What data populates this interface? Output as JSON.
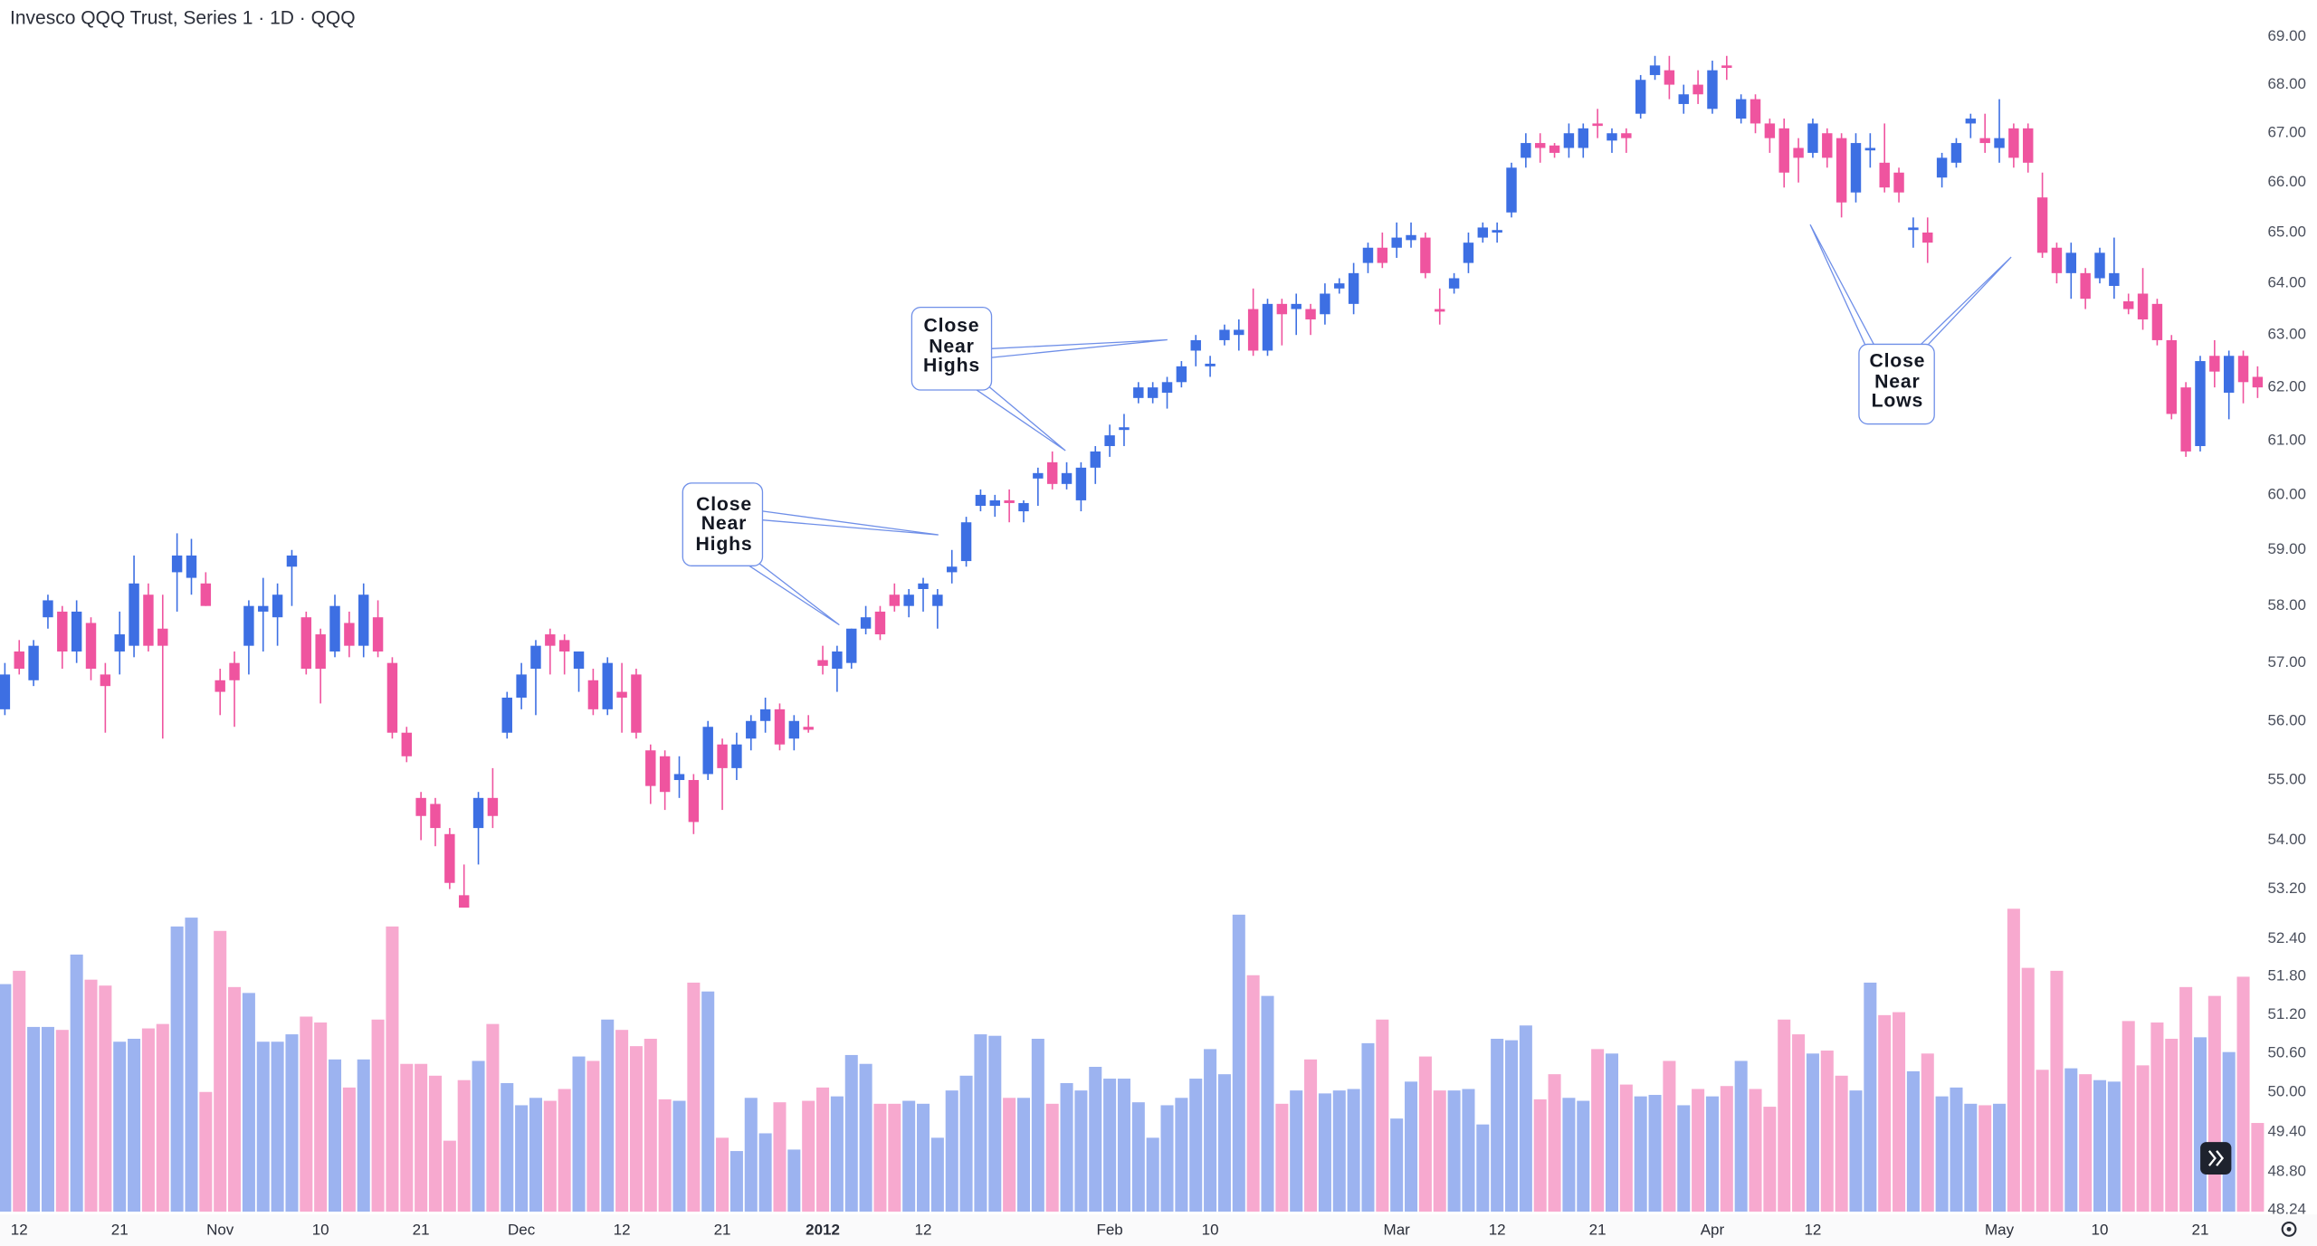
{
  "chart_data": {
    "type": "candlestick",
    "title": "Invesco QQQ Trust, Series 1 · 1D · QQQ",
    "y_scale": "log",
    "grid": false,
    "up_color": "#3d6fe3",
    "down_color": "#ef549f",
    "volume_up_color": "#9cb3f0",
    "volume_down_color": "#f7a9cf",
    "ylim": [
      48.24,
      69.78
    ],
    "yticks": [
      {
        "value": 69,
        "label": "69.00"
      },
      {
        "value": 68,
        "label": "68.00"
      },
      {
        "value": 67,
        "label": "67.00"
      },
      {
        "value": 66,
        "label": "66.00"
      },
      {
        "value": 65,
        "label": "65.00"
      },
      {
        "value": 64,
        "label": "64.00"
      },
      {
        "value": 63,
        "label": "63.00"
      },
      {
        "value": 62,
        "label": "62.00"
      },
      {
        "value": 61,
        "label": "61.00"
      },
      {
        "value": 60,
        "label": "60.00"
      },
      {
        "value": 59,
        "label": "59.00"
      },
      {
        "value": 58,
        "label": "58.00"
      },
      {
        "value": 57,
        "label": "57.00"
      },
      {
        "value": 56,
        "label": "56.00"
      },
      {
        "value": 55,
        "label": "55.00"
      },
      {
        "value": 54,
        "label": "54.00"
      },
      {
        "value": 53.2,
        "label": "53.20"
      },
      {
        "value": 52.4,
        "label": "52.40"
      },
      {
        "value": 51.8,
        "label": "51.80"
      },
      {
        "value": 51.2,
        "label": "51.20"
      },
      {
        "value": 50.6,
        "label": "50.60"
      },
      {
        "value": 50,
        "label": "50.00"
      },
      {
        "value": 49.4,
        "label": "49.40"
      },
      {
        "value": 48.8,
        "label": "48.80"
      },
      {
        "value": 48.24,
        "label": "48.24"
      }
    ],
    "volume_ylim": [
      0,
      220
    ],
    "categories": [
      null,
      "12",
      null,
      null,
      null,
      null,
      null,
      null,
      "21",
      null,
      null,
      null,
      null,
      null,
      null,
      "Nov",
      null,
      null,
      null,
      null,
      null,
      null,
      "10",
      null,
      null,
      null,
      null,
      null,
      null,
      "21",
      null,
      null,
      null,
      null,
      null,
      null,
      "Dec",
      null,
      null,
      null,
      null,
      null,
      null,
      "12",
      null,
      null,
      null,
      null,
      null,
      null,
      "21",
      null,
      null,
      null,
      null,
      null,
      null,
      "2012",
      null,
      null,
      null,
      null,
      null,
      null,
      "12",
      null,
      null,
      null,
      null,
      null,
      null,
      null,
      null,
      null,
      null,
      null,
      null,
      "Feb",
      null,
      null,
      null,
      null,
      null,
      null,
      "10",
      null,
      null,
      null,
      null,
      null,
      null,
      null,
      null,
      null,
      null,
      null,
      null,
      "Mar",
      null,
      null,
      null,
      null,
      null,
      null,
      "12",
      null,
      null,
      null,
      null,
      null,
      null,
      "21",
      null,
      null,
      null,
      null,
      null,
      null,
      null,
      "Apr",
      null,
      null,
      null,
      null,
      null,
      null,
      "12",
      null,
      null,
      null,
      null,
      null,
      null,
      null,
      null,
      null,
      null,
      null,
      null,
      "May",
      null,
      null,
      null,
      null,
      null,
      null,
      "10",
      null,
      null,
      null,
      null,
      null,
      null,
      "21",
      null,
      null,
      null,
      null
    ],
    "open": [
      56.2,
      57.2,
      56.7,
      57.8,
      57.9,
      57.2,
      57.7,
      56.8,
      57.2,
      57.3,
      58.2,
      57.6,
      58.6,
      58.5,
      58.4,
      56.7,
      57.0,
      57.3,
      57.9,
      57.8,
      58.7,
      57.8,
      57.5,
      57.2,
      57.7,
      57.3,
      57.8,
      57.0,
      55.8,
      54.7,
      54.6,
      54.1,
      53.1,
      54.2,
      54.7,
      55.8,
      56.4,
      56.9,
      57.5,
      57.4,
      56.9,
      56.7,
      56.2,
      56.5,
      56.8,
      55.5,
      55.4,
      55.0,
      55.0,
      55.1,
      55.6,
      55.2,
      55.7,
      56.0,
      56.2,
      55.7,
      55.9,
      57.05,
      56.9,
      57.0,
      57.6,
      57.9,
      58.2,
      58.0,
      58.3,
      58.0,
      58.6,
      58.8,
      59.8,
      59.8,
      59.9,
      59.7,
      60.3,
      60.6,
      60.2,
      59.9,
      60.5,
      60.9,
      61.2,
      61.8,
      61.8,
      61.9,
      62.1,
      62.7,
      62.4,
      62.9,
      63.0,
      63.5,
      62.7,
      63.6,
      63.5,
      63.5,
      63.4,
      63.9,
      63.6,
      64.4,
      64.7,
      64.7,
      64.85,
      64.9,
      63.5,
      63.9,
      64.4,
      64.9,
      65.0,
      65.4,
      66.5,
      66.8,
      66.75,
      66.7,
      66.7,
      67.2,
      66.85,
      67.0,
      67.4,
      68.2,
      68.3,
      67.6,
      68.0,
      67.5,
      68.4,
      67.3,
      67.7,
      67.2,
      67.1,
      66.7,
      66.6,
      67.0,
      66.9,
      65.8,
      66.65,
      66.4,
      66.2,
      65.05,
      65.0,
      66.1,
      66.4,
      67.2,
      66.9,
      66.7,
      67.1,
      67.1,
      65.7,
      64.7,
      64.2,
      64.2,
      64.1,
      63.95,
      63.65,
      63.8,
      63.6,
      62.9,
      62.0,
      60.9,
      62.6,
      61.9,
      62.6,
      62.2
    ],
    "high": [
      57.0,
      57.4,
      57.4,
      58.2,
      58.0,
      58.1,
      57.8,
      57.0,
      57.9,
      58.9,
      58.4,
      58.2,
      59.3,
      59.2,
      58.6,
      56.9,
      57.2,
      58.1,
      58.5,
      58.4,
      59.0,
      57.9,
      57.6,
      58.2,
      57.9,
      58.4,
      58.1,
      57.1,
      55.9,
      54.8,
      54.7,
      54.2,
      53.6,
      54.8,
      55.2,
      56.5,
      57.0,
      57.4,
      57.6,
      57.5,
      57.2,
      56.9,
      57.1,
      57.0,
      56.9,
      55.6,
      55.5,
      55.4,
      55.1,
      56.0,
      55.7,
      55.8,
      56.1,
      56.4,
      56.3,
      56.1,
      56.1,
      57.3,
      57.3,
      57.6,
      58.0,
      58.0,
      58.4,
      58.3,
      58.5,
      58.3,
      59.0,
      59.6,
      60.1,
      60.0,
      60.1,
      59.9,
      60.5,
      60.8,
      60.6,
      60.6,
      60.9,
      61.3,
      61.5,
      62.1,
      62.1,
      62.2,
      62.5,
      63.0,
      62.6,
      63.2,
      63.3,
      63.9,
      63.7,
      63.7,
      63.8,
      63.6,
      64.0,
      64.1,
      64.4,
      64.8,
      65.0,
      65.2,
      65.2,
      65.0,
      63.9,
      64.2,
      65.0,
      65.2,
      65.2,
      66.4,
      67.0,
      67.0,
      66.8,
      67.2,
      67.2,
      67.5,
      67.1,
      67.1,
      68.2,
      68.6,
      68.6,
      68.0,
      68.3,
      68.5,
      68.6,
      67.8,
      67.8,
      67.3,
      67.3,
      66.9,
      67.3,
      67.1,
      67.0,
      67.0,
      67.0,
      67.2,
      66.3,
      65.3,
      65.3,
      66.6,
      66.9,
      67.4,
      67.4,
      67.7,
      67.2,
      67.2,
      66.2,
      64.8,
      64.8,
      64.3,
      64.7,
      64.9,
      63.8,
      64.3,
      63.7,
      63.0,
      62.1,
      62.6,
      62.9,
      62.7,
      62.7,
      62.4
    ],
    "low": [
      56.1,
      56.8,
      56.6,
      57.6,
      56.9,
      57.0,
      56.7,
      55.8,
      56.8,
      57.1,
      57.2,
      55.7,
      57.9,
      58.2,
      58.0,
      56.1,
      55.9,
      56.8,
      57.2,
      57.3,
      58.0,
      56.8,
      56.3,
      57.1,
      57.1,
      57.1,
      57.1,
      55.7,
      55.3,
      54.0,
      53.9,
      53.2,
      52.9,
      53.6,
      54.2,
      55.7,
      56.2,
      56.1,
      56.8,
      56.8,
      56.5,
      56.1,
      56.1,
      55.8,
      55.7,
      54.6,
      54.5,
      54.7,
      54.1,
      55.0,
      54.5,
      55.0,
      55.5,
      55.8,
      55.5,
      55.5,
      55.8,
      56.8,
      56.5,
      56.9,
      57.5,
      57.4,
      57.9,
      57.8,
      57.9,
      57.6,
      58.4,
      58.7,
      59.7,
      59.6,
      59.5,
      59.5,
      59.8,
      60.1,
      60.1,
      59.7,
      60.2,
      60.7,
      60.9,
      61.7,
      61.7,
      61.6,
      62.0,
      62.4,
      62.2,
      62.8,
      62.7,
      62.6,
      62.6,
      62.8,
      63.0,
      63.0,
      63.2,
      63.8,
      63.4,
      64.2,
      64.3,
      64.5,
      64.7,
      64.1,
      63.2,
      63.8,
      64.2,
      64.8,
      64.8,
      65.3,
      66.3,
      66.4,
      66.5,
      66.5,
      66.5,
      66.9,
      66.6,
      66.6,
      67.3,
      68.1,
      67.7,
      67.4,
      67.6,
      67.4,
      68.1,
      67.2,
      67.0,
      66.6,
      65.9,
      66.0,
      66.5,
      66.3,
      65.3,
      65.6,
      66.3,
      65.8,
      65.6,
      64.7,
      64.4,
      65.9,
      66.3,
      66.9,
      66.6,
      66.4,
      66.3,
      66.2,
      64.5,
      64.0,
      63.7,
      63.5,
      64.0,
      63.7,
      63.4,
      63.1,
      62.8,
      61.4,
      60.7,
      60.8,
      62.0,
      61.4,
      61.7,
      61.8
    ],
    "close": [
      56.8,
      56.9,
      57.3,
      58.1,
      57.2,
      57.9,
      56.9,
      56.6,
      57.5,
      58.4,
      57.3,
      57.3,
      58.9,
      58.9,
      58.0,
      56.5,
      56.7,
      58.0,
      58.0,
      58.2,
      58.9,
      56.9,
      56.9,
      58.0,
      57.3,
      58.2,
      57.2,
      55.8,
      55.4,
      54.4,
      54.2,
      53.3,
      52.9,
      54.7,
      54.4,
      56.4,
      56.8,
      57.3,
      57.3,
      57.2,
      57.2,
      56.2,
      57.0,
      56.4,
      55.8,
      54.9,
      54.8,
      55.1,
      54.3,
      55.9,
      55.2,
      55.6,
      56.0,
      56.2,
      55.6,
      56.0,
      55.85,
      56.95,
      57.2,
      57.6,
      57.8,
      57.5,
      58.0,
      58.2,
      58.4,
      58.2,
      58.7,
      59.5,
      60.0,
      59.9,
      59.85,
      59.85,
      60.4,
      60.2,
      60.4,
      60.5,
      60.8,
      61.1,
      61.25,
      62.0,
      62.0,
      62.1,
      62.4,
      62.9,
      62.45,
      63.1,
      63.1,
      62.7,
      63.6,
      63.4,
      63.6,
      63.3,
      63.8,
      64.0,
      64.2,
      64.7,
      64.4,
      64.9,
      64.95,
      64.2,
      63.45,
      64.1,
      64.8,
      65.1,
      65.05,
      66.3,
      66.8,
      66.7,
      66.6,
      67.0,
      67.1,
      67.15,
      67.0,
      66.9,
      68.1,
      68.4,
      68.0,
      67.8,
      67.8,
      68.3,
      68.35,
      67.7,
      67.2,
      66.9,
      66.2,
      66.5,
      67.2,
      66.5,
      65.6,
      66.8,
      66.7,
      65.9,
      65.8,
      65.1,
      64.8,
      66.5,
      66.8,
      67.3,
      66.8,
      66.9,
      66.5,
      66.4,
      64.6,
      64.2,
      64.6,
      63.7,
      64.6,
      64.2,
      63.5,
      63.3,
      62.9,
      61.5,
      60.8,
      62.5,
      62.3,
      62.6,
      62.1,
      62.0
    ],
    "volume": [
      154,
      163,
      125,
      125,
      123,
      174,
      157,
      153,
      115,
      117,
      124,
      127,
      193,
      199,
      81,
      190,
      152,
      148,
      115,
      115,
      120,
      132,
      128,
      103,
      84,
      103,
      130,
      193,
      100,
      100,
      92,
      48,
      89,
      102,
      127,
      87,
      72,
      77,
      75,
      83,
      105,
      102,
      130,
      123,
      112,
      117,
      76,
      75,
      155,
      149,
      50,
      41,
      77,
      53,
      74,
      42,
      75,
      84,
      78,
      106,
      100,
      73,
      73,
      75,
      73,
      50,
      82,
      92,
      120,
      119,
      77,
      77,
      117,
      73,
      87,
      82,
      98,
      90,
      90,
      74,
      50,
      72,
      77,
      90,
      110,
      93,
      201,
      160,
      146,
      73,
      82,
      103,
      80,
      82,
      83,
      114,
      130,
      63,
      88,
      105,
      82,
      82,
      83,
      59,
      117,
      116,
      126,
      76,
      93,
      77,
      75,
      110,
      107,
      86,
      78,
      79,
      102,
      72,
      83,
      78,
      85,
      102,
      83,
      71,
      130,
      120,
      107,
      109,
      92,
      82,
      155,
      133,
      135,
      95,
      107,
      78,
      84,
      73,
      72,
      73,
      205,
      165,
      96,
      163,
      97,
      93,
      89,
      88,
      129,
      99,
      128,
      117,
      152,
      118,
      146,
      108,
      159,
      60
    ],
    "annotations": [
      {
        "lines": [
          "Close",
          "Near",
          "Highs"
        ]
      },
      {
        "lines": [
          "Close",
          "Near",
          "Highs"
        ]
      },
      {
        "lines": [
          "Close",
          "Near",
          "Lows"
        ]
      }
    ]
  }
}
